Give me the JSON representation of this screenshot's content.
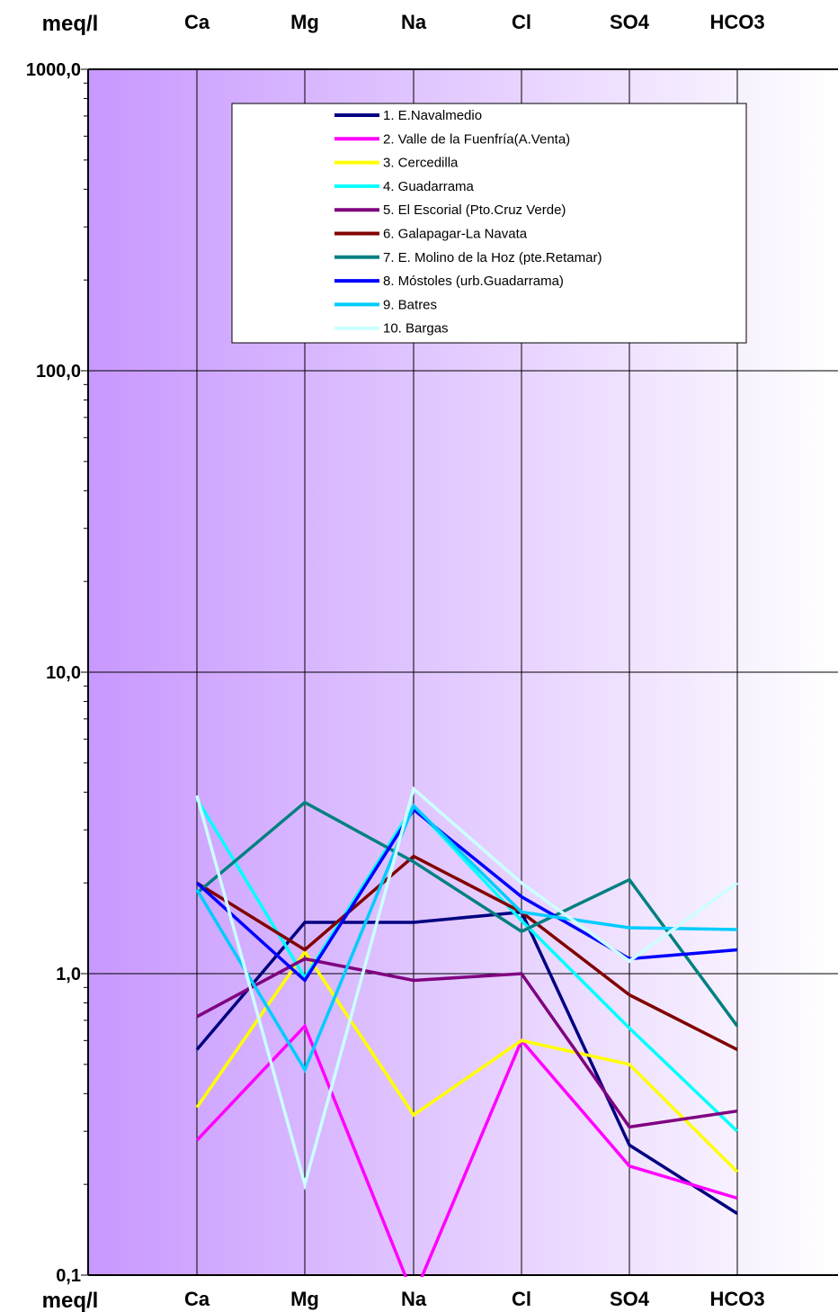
{
  "chart_data": {
    "type": "line",
    "categories": [
      "Ca",
      "Mg",
      "Na",
      "Cl",
      "SO4",
      "HCO3"
    ],
    "ylabel": "meq/l",
    "yscale": "log",
    "ylim": [
      0.1,
      1000
    ],
    "yticks": [
      {
        "value": 0.1,
        "label": "0,1"
      },
      {
        "value": 1,
        "label": "1,0"
      },
      {
        "value": 10,
        "label": "10,0"
      },
      {
        "value": 100,
        "label": "100,0"
      },
      {
        "value": 1000,
        "label": "1000,0"
      }
    ],
    "grid": true,
    "legend": "top-center",
    "background_gradient": [
      "#c898ff",
      "#ffffff"
    ],
    "series": [
      {
        "name": "1. E.Navalmedio",
        "color": "#000080",
        "values": [
          0.56,
          1.48,
          1.48,
          1.6,
          0.27,
          0.16
        ]
      },
      {
        "name": "2. Valle de la Fuenfría(A.Venta)",
        "color": "#ff00ff",
        "values": [
          0.28,
          0.67,
          0.085,
          0.6,
          0.23,
          0.18
        ]
      },
      {
        "name": "3. Cercedilla",
        "color": "#ffff00",
        "values": [
          0.36,
          1.18,
          0.34,
          0.6,
          0.5,
          0.22
        ]
      },
      {
        "name": "4. Guadarrama",
        "color": "#00ffff",
        "values": [
          3.8,
          0.97,
          3.6,
          1.5,
          0.66,
          0.3
        ]
      },
      {
        "name": "5. El Escorial (Pto.Cruz Verde)",
        "color": "#800080",
        "values": [
          0.72,
          1.12,
          0.95,
          1.0,
          0.31,
          0.35
        ]
      },
      {
        "name": "6. Galapagar-La Navata",
        "color": "#800000",
        "values": [
          2.0,
          1.2,
          2.45,
          1.6,
          0.85,
          0.56
        ]
      },
      {
        "name": "7. E. Molino de la Hoz (pte.Retamar)",
        "color": "#008080",
        "values": [
          1.85,
          3.7,
          2.35,
          1.38,
          2.05,
          0.67
        ]
      },
      {
        "name": "8. Móstoles (urb.Guadarrama)",
        "color": "#0000ff",
        "values": [
          2.0,
          0.95,
          3.5,
          1.8,
          1.12,
          1.2
        ]
      },
      {
        "name": "9. Batres",
        "color": "#00ccff",
        "values": [
          1.9,
          0.48,
          3.6,
          1.6,
          1.42,
          1.4
        ]
      },
      {
        "name": "10. Bargas",
        "color": "#ccffff",
        "values": [
          3.9,
          0.2,
          4.1,
          2.0,
          1.1,
          2.0
        ]
      }
    ]
  }
}
